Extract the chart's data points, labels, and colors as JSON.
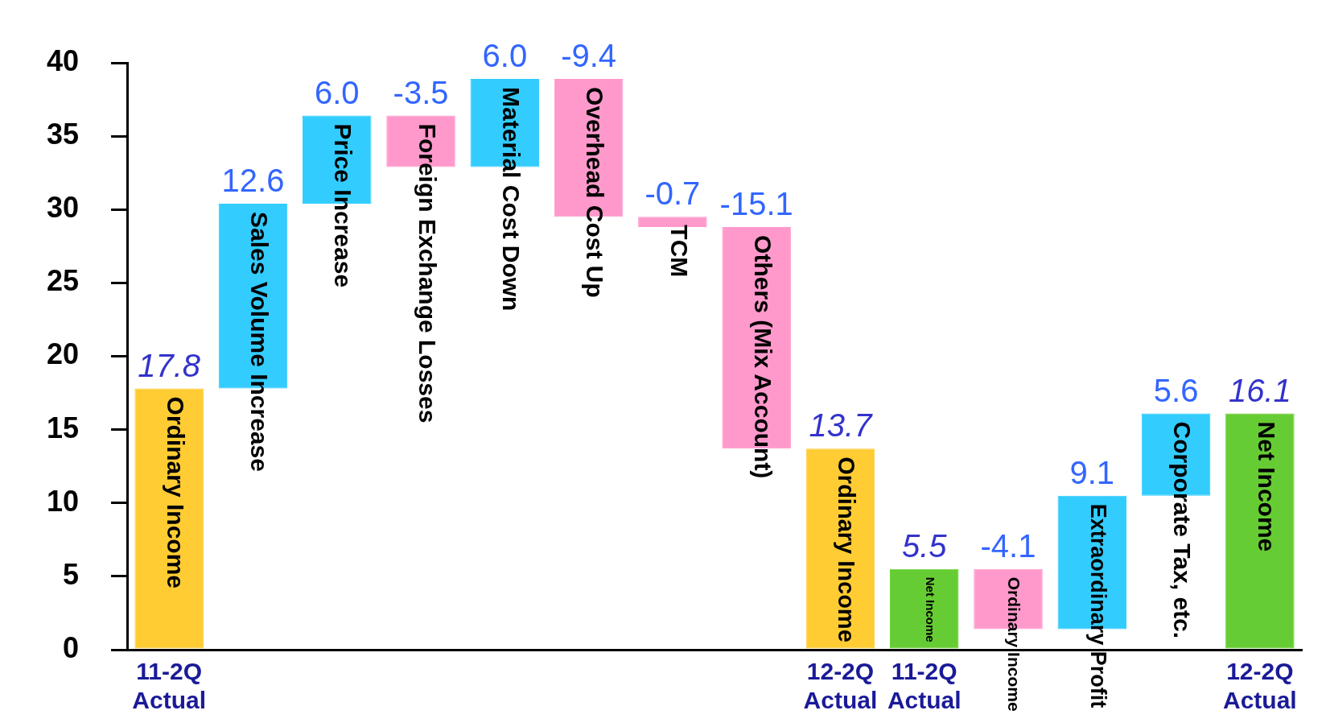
{
  "chart_data": {
    "type": "bar",
    "categories": [
      "11-2Q Actual",
      null,
      null,
      null,
      null,
      null,
      null,
      null,
      "12-2Q Actual",
      "11-2Q Actual",
      null,
      null,
      null,
      "12-2Q Actual"
    ],
    "values": [
      17.8,
      12.6,
      6.0,
      -3.5,
      6.0,
      -9.4,
      -0.7,
      -15.1,
      13.7,
      5.5,
      -4.1,
      9.1,
      5.6,
      16.1
    ],
    "base": [
      null,
      17.8,
      30.4,
      36.4,
      32.9,
      38.9,
      29.5,
      28.8,
      null,
      null,
      5.5,
      1.4,
      10.5,
      null
    ],
    "colors": [
      "#ffcc33",
      "#33ccff",
      "#33ccff",
      "#ff99cc",
      "#33ccff",
      "#ff99cc",
      "#ff99cc",
      "#ff99cc",
      "#ffcc33",
      "#66cc33",
      "#ff99cc",
      "#33ccff",
      "#33ccff",
      "#66cc33"
    ],
    "annotations": [
      "Ordinary Income",
      "Sales Volume Increase",
      "Price Increase",
      "Foreign Exchange Losses",
      "Material Cost Down",
      "Overhead Cost Up",
      "TCM",
      "Others (Mix Account)",
      "Ordinary Income",
      "Net Income",
      "Ordinary Income",
      "Extraordinary Profit",
      "Corporate Tax, etc.",
      "Net Income"
    ],
    "ylim": [
      0,
      40
    ],
    "yticks": [
      0,
      5,
      10,
      15,
      20,
      25,
      30,
      35,
      40
    ],
    "value_labels": [
      "17.8",
      "12.6",
      "6.0",
      "-3.5",
      "6.0",
      "-9.4",
      "-0.7",
      "-15.1",
      "13.7",
      "5.5",
      "-4.1",
      "9.1",
      "5.6",
      "16.1"
    ],
    "grid": false,
    "legend": false
  }
}
